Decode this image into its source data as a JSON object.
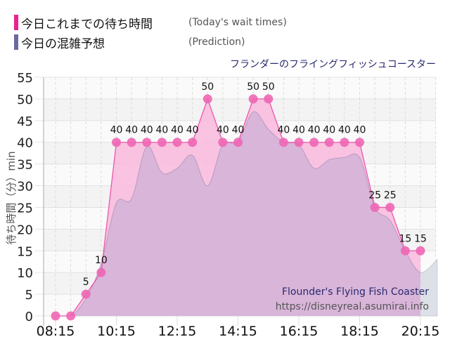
{
  "legend": [
    {
      "label_jp": "今日これまでの待ち時間",
      "label_en": "(Today's wait times)",
      "color": "#ee2b96"
    },
    {
      "label_jp": "今日の混雑予想",
      "label_en": "(Prediction)",
      "color": "#6a6aa0"
    }
  ],
  "ride_title": "フランダーのフライングフィッシュコースター",
  "watermark": {
    "name": "Flounder's Flying Fish Coaster",
    "url": "https://disneyreal.asumirai.info"
  },
  "colors": {
    "actual_line": "#ee55aa",
    "actual_fill": "#f8b8dc",
    "marker": "#ee66b4",
    "prediction_fill": "#d6b4d8",
    "plot_bg_band": "#f4f4f4",
    "grid": "#cccccc"
  },
  "chart_data": {
    "type": "area",
    "title": "フランダーのフライングフィッシュコースター",
    "xlabel": "",
    "ylabel": "待ち時間（分）min",
    "ylim": [
      0,
      55
    ],
    "yticks": [
      0,
      5,
      10,
      15,
      20,
      25,
      30,
      35,
      40,
      45,
      50,
      55
    ],
    "xtick_labels": [
      "08:15",
      "10:15",
      "12:15",
      "14:15",
      "16:15",
      "18:15",
      "20:15"
    ],
    "grid": true,
    "legend_position": "top-left",
    "x": [
      "08:15",
      "08:45",
      "09:15",
      "09:45",
      "10:15",
      "10:45",
      "11:15",
      "11:45",
      "12:15",
      "12:45",
      "13:15",
      "13:45",
      "14:15",
      "14:45",
      "15:15",
      "15:45",
      "16:15",
      "16:45",
      "17:15",
      "17:45",
      "18:15",
      "18:45",
      "19:15",
      "19:45",
      "20:15"
    ],
    "series": [
      {
        "name": "今日これまでの待ち時間 (Today's wait times)",
        "values": [
          0,
          0,
          5,
          10,
          40,
          40,
          40,
          40,
          40,
          40,
          50,
          40,
          40,
          50,
          50,
          40,
          40,
          40,
          40,
          40,
          40,
          25,
          25,
          15,
          15
        ]
      },
      {
        "name": "今日の混雑予想 (Prediction)",
        "values": [
          0,
          0,
          4,
          12,
          26,
          27,
          39,
          33,
          34,
          37,
          30,
          39.5,
          40,
          47,
          43,
          40,
          39.5,
          34,
          36,
          36.5,
          36.5,
          25,
          22,
          15,
          10
        ]
      }
    ]
  }
}
